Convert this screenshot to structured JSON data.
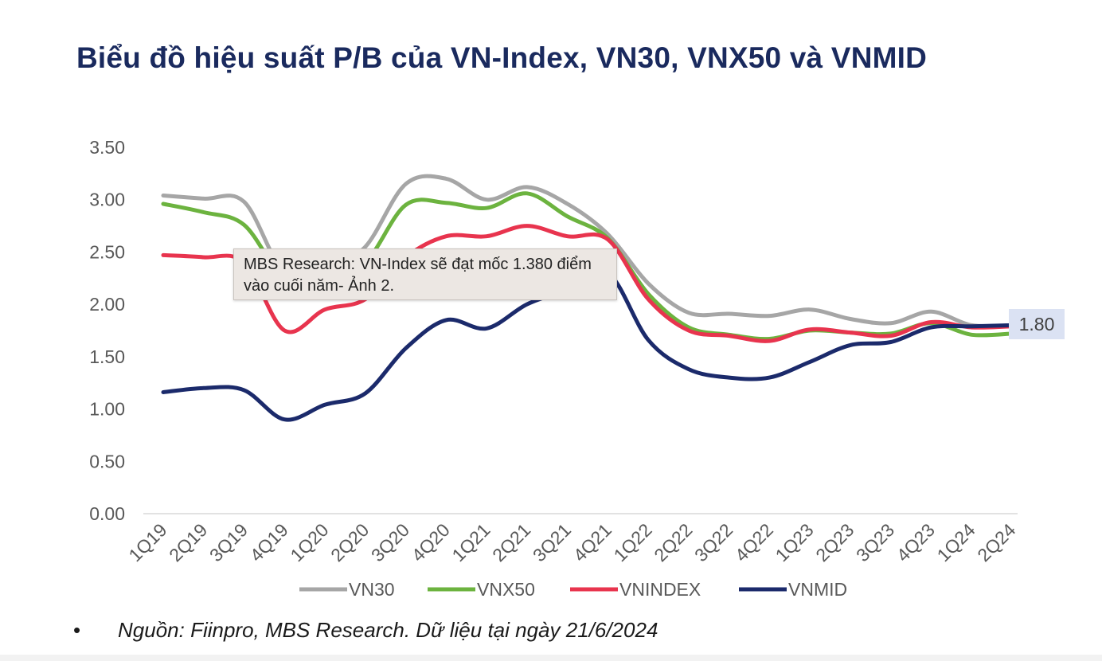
{
  "page_title": "Biểu đồ hiệu suất P/B của VN-Index, VN30, VNX50 và VNMID",
  "tooltip_text": "MBS Research: VN-Index sẽ đạt mốc 1.380 điểm vào cuối năm- Ảnh 2.",
  "footnote": {
    "bullet": "•",
    "text": "Nguồn: Fiinpro, MBS Research. Dữ liệu tại ngày 21/6/2024"
  },
  "colors": {
    "VN30": "#a6a6a6",
    "VNX50": "#6cb33f",
    "VNINDEX": "#e8344e",
    "VNMID": "#1b2a6b",
    "title": "#1a2a5e",
    "badge_bg": "#dbe2f3"
  },
  "chart_data": {
    "type": "line",
    "title": "",
    "xlabel": "",
    "ylabel": "",
    "ylim": [
      0,
      3.5
    ],
    "yticks": [
      "0.00",
      "0.50",
      "1.00",
      "1.50",
      "2.00",
      "2.50",
      "3.00",
      "3.50"
    ],
    "grid": false,
    "legend_position": "bottom",
    "categories": [
      "1Q19",
      "2Q19",
      "3Q19",
      "4Q19",
      "1Q20",
      "2Q20",
      "3Q20",
      "4Q20",
      "1Q21",
      "2Q21",
      "3Q21",
      "4Q21",
      "1Q22",
      "2Q22",
      "3Q22",
      "4Q22",
      "1Q23",
      "2Q23",
      "3Q23",
      "4Q23",
      "1Q24",
      "2Q24"
    ],
    "series": [
      {
        "name": "VN30",
        "values": [
          3.04,
          3.01,
          2.98,
          2.3,
          2.32,
          2.55,
          3.15,
          3.2,
          3.0,
          3.12,
          2.96,
          2.67,
          2.2,
          1.92,
          1.91,
          1.89,
          1.95,
          1.86,
          1.82,
          1.93,
          1.8,
          1.8
        ]
      },
      {
        "name": "VNX50",
        "values": [
          2.96,
          2.88,
          2.76,
          2.25,
          2.25,
          2.4,
          2.95,
          2.97,
          2.92,
          3.06,
          2.84,
          2.63,
          2.1,
          1.78,
          1.71,
          1.67,
          1.75,
          1.73,
          1.72,
          1.82,
          1.71,
          1.72
        ]
      },
      {
        "name": "VNINDEX",
        "values": [
          2.47,
          2.45,
          2.4,
          1.75,
          1.95,
          2.05,
          2.45,
          2.65,
          2.65,
          2.75,
          2.65,
          2.62,
          2.05,
          1.75,
          1.7,
          1.65,
          1.76,
          1.73,
          1.7,
          1.83,
          1.78,
          1.79
        ]
      },
      {
        "name": "VNMID",
        "values": [
          1.16,
          1.2,
          1.18,
          0.9,
          1.04,
          1.15,
          1.58,
          1.85,
          1.77,
          2.0,
          2.14,
          2.3,
          1.66,
          1.38,
          1.3,
          1.3,
          1.45,
          1.61,
          1.64,
          1.78,
          1.79,
          1.8
        ]
      }
    ],
    "annotations": [
      "1.80"
    ]
  }
}
